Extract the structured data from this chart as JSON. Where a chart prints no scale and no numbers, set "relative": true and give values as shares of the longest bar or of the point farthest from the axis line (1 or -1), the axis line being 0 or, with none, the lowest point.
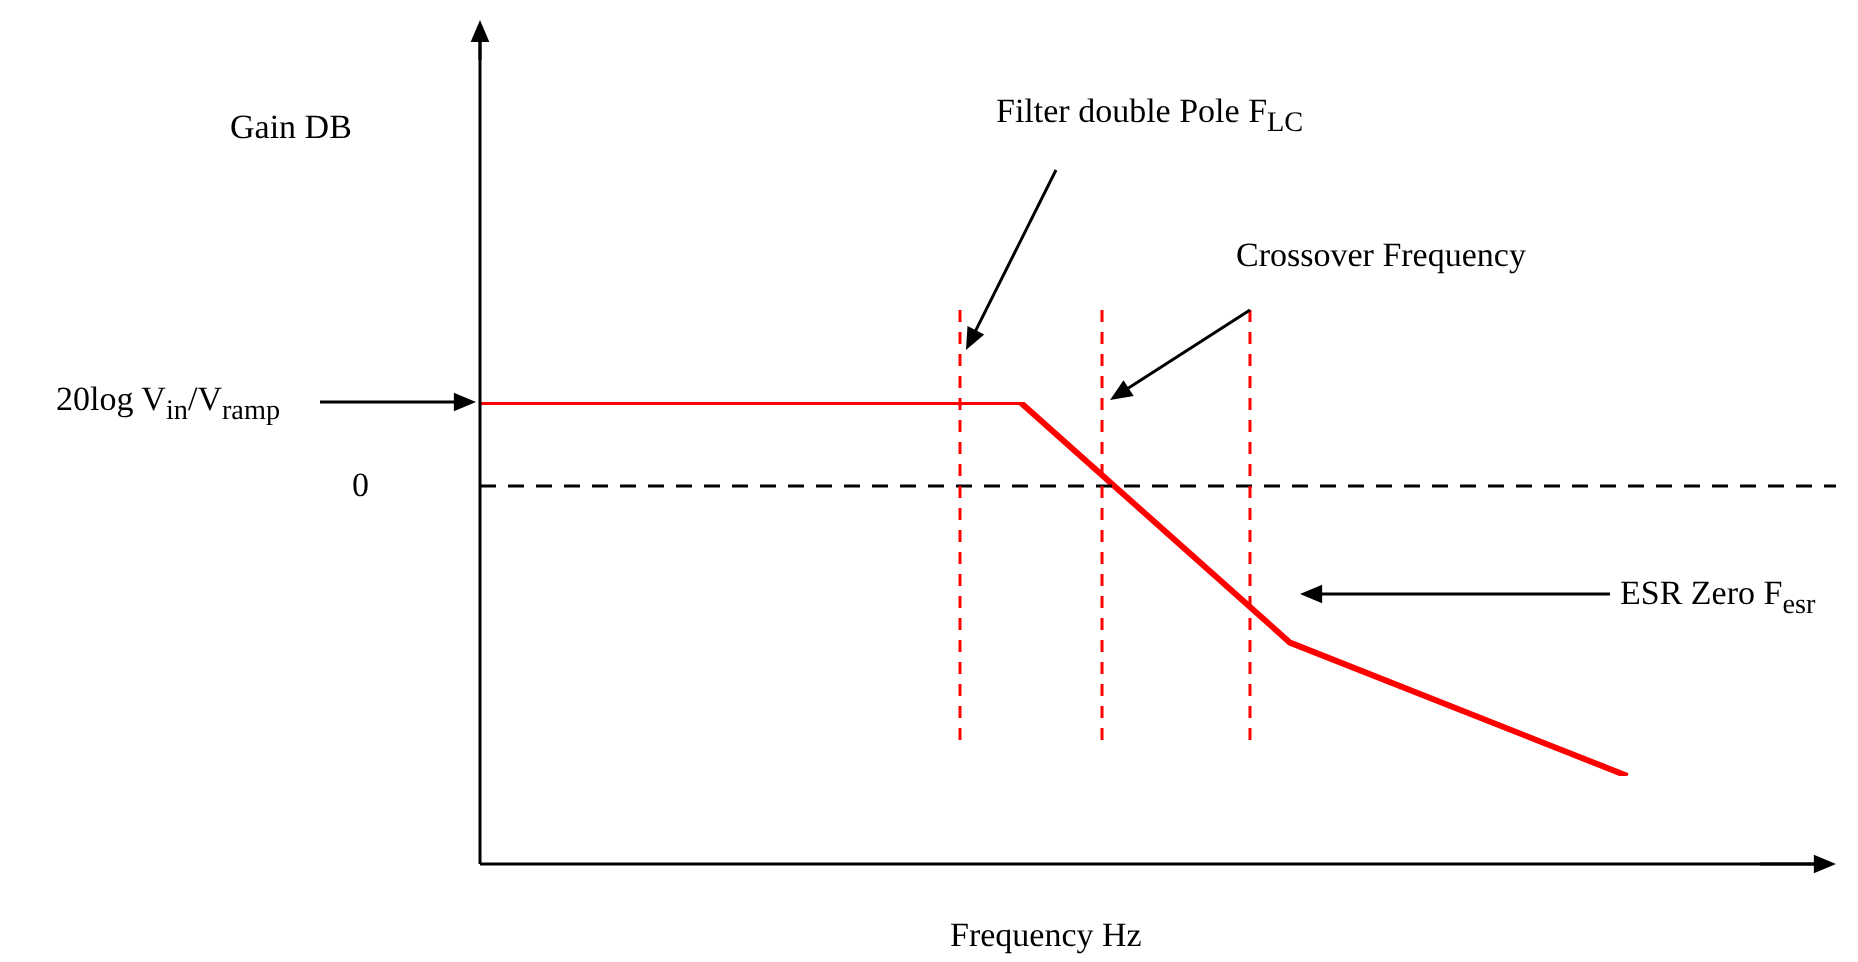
{
  "chart_data": {
    "type": "line",
    "relative": true,
    "xlabel": "Frequency Hz",
    "categories": [
      null,
      null,
      null,
      null,
      null,
      null,
      null,
      null,
      null,
      null,
      null,
      null,
      null,
      null,
      null,
      null,
      null,
      null,
      null,
      null,
      null
    ],
    "series": [
      {
        "color": "#ff0000",
        "values": [
          0.29,
          null,
          null,
          null,
          null,
          null,
          null,
          null,
          0.29,
          null,
          null,
          null,
          -0.54,
          null,
          null,
          null,
          null,
          -1,
          null,
          null,
          null
        ]
      }
    ],
    "ref_lines": [
      {
        "axis": "y",
        "value": 0,
        "label": "0",
        "color": "#000000",
        "line_style": "dashed"
      }
    ],
    "annotations": [
      "Filter double Pole F$_{LC}$",
      "Crossover Frequency",
      "ESR Zero F$_{esr}$",
      "20log  V$_{in}$/V$_{ramp}$",
      "Gain DB"
    ],
    "legend": false,
    "marker": "none",
    "line_style": "solid"
  }
}
